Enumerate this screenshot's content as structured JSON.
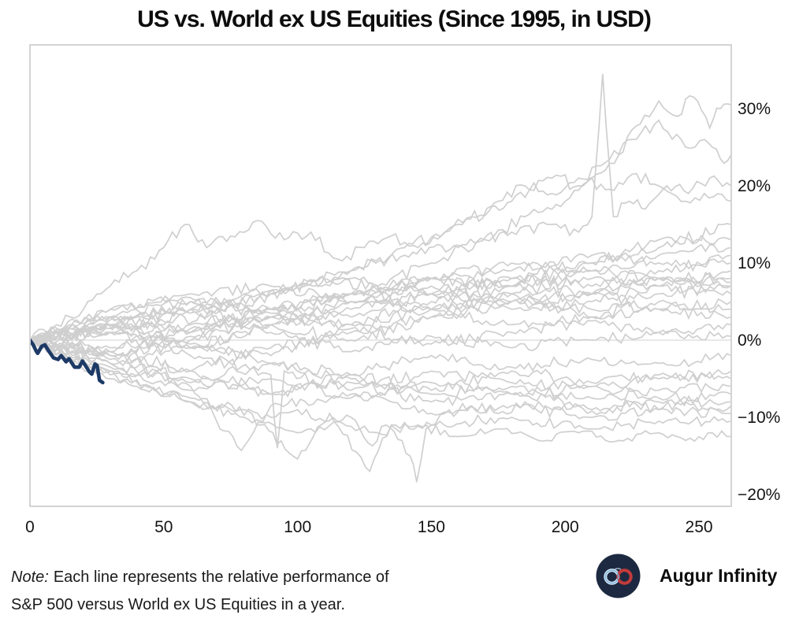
{
  "chart": {
    "title": "US vs. World ex US Equities (Since 1995, in USD)"
  },
  "note": {
    "prefix": "Note:",
    "line1": "Each line represents the relative performance of",
    "line2": "S&P 500 versus World ex US Equities in a year."
  },
  "logo": {
    "text": "Augur Infinity",
    "icon": "infinity-icon",
    "circle_color": "#1c2940",
    "loop_left_color": "#dcebf7",
    "loop_right_color": "#c23b3b"
  },
  "colors": {
    "background_line": "#cfcfcf",
    "highlight_line": "#1d3a66",
    "plot_border": "#c9c9c9",
    "zero_gridline": "#d9d9d9",
    "text": "#141414"
  },
  "chart_data": {
    "type": "line",
    "title": "US vs. World ex US Equities (Since 1995, in USD)",
    "xlabel": "",
    "ylabel": "",
    "grid": "horizontal zero line only",
    "legend": "none",
    "x_axis": {
      "range": [
        0,
        262
      ],
      "ticks": [
        {
          "value": 0,
          "label": "0"
        },
        {
          "value": 50,
          "label": "50"
        },
        {
          "value": 100,
          "label": "100"
        },
        {
          "value": 150,
          "label": "150"
        },
        {
          "value": 200,
          "label": "200"
        },
        {
          "value": 250,
          "label": "250"
        }
      ]
    },
    "y_axis": {
      "side": "right",
      "unit": "%",
      "range": [
        -21.5,
        38.3
      ],
      "zero_line": 0,
      "ticks": [
        {
          "value": 30,
          "label": "30%"
        },
        {
          "value": 20,
          "label": "20%"
        },
        {
          "value": 10,
          "label": "10%"
        },
        {
          "value": 0,
          "label": "0%"
        },
        {
          "value": -10,
          "label": "−10%"
        },
        {
          "value": -20,
          "label": "−20%"
        }
      ]
    },
    "highlight_series": {
      "name": "current-year-to-date",
      "color": "#1d3a66",
      "points": [
        [
          0,
          0
        ],
        [
          1.2,
          -0.6
        ],
        [
          2.3,
          -1.4
        ],
        [
          2.9,
          -1.7
        ],
        [
          4.4,
          -0.8
        ],
        [
          5.6,
          -0.6
        ],
        [
          7,
          -1.4
        ],
        [
          8.8,
          -2.3
        ],
        [
          10.5,
          -2.5
        ],
        [
          11.7,
          -2
        ],
        [
          13.5,
          -2.8
        ],
        [
          14.6,
          -2.4
        ],
        [
          16.7,
          -3.5
        ],
        [
          18.4,
          -3.5
        ],
        [
          19.6,
          -2.7
        ],
        [
          21.1,
          -3.5
        ],
        [
          22.2,
          -4.1
        ],
        [
          23.1,
          -4.4
        ],
        [
          24.3,
          -3.1
        ],
        [
          25.1,
          -3.3
        ],
        [
          26,
          -5.2
        ],
        [
          27.2,
          -5.5
        ]
      ]
    },
    "generic_x": [
      0,
      30,
      60,
      90,
      120,
      150,
      180,
      210,
      235,
      262
    ],
    "background_series": [
      {
        "id": "year-01",
        "seed": 101,
        "jitter": 1.2,
        "anchors": [
          [
            0,
            0
          ],
          [
            15,
            1.5
          ],
          [
            30,
            3
          ],
          [
            50,
            2
          ],
          [
            70,
            4
          ],
          [
            90,
            6
          ],
          [
            110,
            8
          ],
          [
            130,
            7
          ],
          [
            150,
            10
          ],
          [
            170,
            13
          ],
          [
            185,
            16
          ],
          [
            200,
            18
          ],
          [
            210,
            21
          ],
          [
            220,
            24
          ],
          [
            228,
            28
          ],
          [
            235,
            31
          ],
          [
            242,
            29
          ],
          [
            248,
            31.5
          ],
          [
            254,
            27.5
          ],
          [
            258,
            30
          ],
          [
            262,
            30.5
          ]
        ]
      },
      {
        "id": "year-02",
        "seed": 102,
        "jitter": 1.1,
        "anchors": [
          [
            0,
            0
          ],
          [
            20,
            1
          ],
          [
            40,
            3
          ],
          [
            60,
            5
          ],
          [
            80,
            4
          ],
          [
            100,
            7
          ],
          [
            120,
            9
          ],
          [
            140,
            12
          ],
          [
            160,
            15
          ],
          [
            180,
            18
          ],
          [
            195,
            21
          ],
          [
            205,
            20
          ],
          [
            215,
            23
          ],
          [
            225,
            26
          ],
          [
            235,
            28.5
          ],
          [
            245,
            25
          ],
          [
            252,
            26
          ],
          [
            258,
            23.5
          ],
          [
            262,
            24
          ]
        ]
      },
      {
        "id": "year-03",
        "seed": 103,
        "jitter": 1.0,
        "anchors": [
          [
            0,
            0
          ],
          [
            20,
            1.5
          ],
          [
            40,
            3
          ],
          [
            60,
            4
          ],
          [
            80,
            6
          ],
          [
            100,
            7
          ],
          [
            120,
            9
          ],
          [
            140,
            11
          ],
          [
            160,
            12
          ],
          [
            180,
            14
          ],
          [
            195,
            15
          ],
          [
            205,
            14
          ],
          [
            210,
            16
          ],
          [
            214,
            34.5
          ],
          [
            218,
            16
          ],
          [
            224,
            18
          ],
          [
            230,
            17
          ],
          [
            238,
            20
          ],
          [
            246,
            19
          ],
          [
            254,
            21
          ],
          [
            262,
            20
          ]
        ]
      },
      {
        "id": "year-04",
        "seed": 104,
        "jitter": 1.0,
        "anchors": [
          [
            0,
            0
          ],
          [
            10,
            2
          ],
          [
            20,
            4
          ],
          [
            30,
            7
          ],
          [
            40,
            9
          ],
          [
            50,
            12
          ],
          [
            58,
            15
          ],
          [
            66,
            12
          ],
          [
            75,
            13.5
          ],
          [
            85,
            15.5
          ],
          [
            95,
            13
          ],
          [
            105,
            14
          ],
          [
            115,
            10.5
          ],
          [
            125,
            12
          ],
          [
            135,
            13.5
          ],
          [
            145,
            12
          ],
          [
            155,
            14
          ],
          [
            165,
            16
          ],
          [
            175,
            18
          ],
          [
            185,
            20
          ],
          [
            195,
            19
          ],
          [
            205,
            21
          ],
          [
            215,
            19.5
          ],
          [
            225,
            21.5
          ],
          [
            235,
            20
          ],
          [
            245,
            18
          ],
          [
            252,
            19
          ],
          [
            262,
            18
          ]
        ]
      },
      {
        "id": "year-05",
        "seed": 105,
        "jitter": 0.9,
        "anchors": [
          [
            0,
            0
          ],
          [
            15,
            -2.5
          ],
          [
            30,
            -4.5
          ],
          [
            45,
            -6
          ],
          [
            60,
            -8
          ],
          [
            75,
            -9
          ],
          [
            90,
            -10
          ],
          [
            100,
            -9
          ],
          [
            110,
            -10.5
          ],
          [
            120,
            -10
          ],
          [
            128,
            -13.7
          ],
          [
            133,
            -11
          ],
          [
            139,
            -13
          ],
          [
            142,
            -15
          ],
          [
            144.5,
            -18.4
          ],
          [
            148,
            -11.5
          ],
          [
            155,
            -9.5
          ],
          [
            165,
            -8.5
          ],
          [
            175,
            -9.5
          ],
          [
            185,
            -8
          ],
          [
            195,
            -9
          ],
          [
            205,
            -8.5
          ],
          [
            215,
            -9.5
          ],
          [
            225,
            -8
          ],
          [
            235,
            -9
          ],
          [
            245,
            -8
          ],
          [
            253,
            -9
          ],
          [
            262,
            -8.5
          ]
        ]
      },
      {
        "id": "year-06",
        "seed": 106,
        "jitter": 0.8,
        "anchors": [
          [
            0,
            0
          ],
          [
            20,
            -3
          ],
          [
            40,
            -6
          ],
          [
            60,
            -8
          ],
          [
            80,
            -10
          ],
          [
            100,
            -12
          ],
          [
            115,
            -10.5
          ],
          [
            130,
            -12
          ],
          [
            145,
            -11
          ],
          [
            160,
            -12.5
          ],
          [
            175,
            -11.5
          ],
          [
            190,
            -13
          ],
          [
            205,
            -12
          ],
          [
            220,
            -13
          ],
          [
            235,
            -12
          ],
          [
            245,
            -13
          ],
          [
            255,
            -12
          ],
          [
            262,
            -12.5
          ]
        ]
      },
      {
        "id": "year-07",
        "seed": 107,
        "jitter": 1.1,
        "ys": [
          0,
          2,
          1,
          4,
          6,
          8,
          7,
          10,
          12,
          15
        ]
      },
      {
        "id": "year-08",
        "seed": 108,
        "jitter": 1.0,
        "ys": [
          0,
          -1.5,
          2,
          4,
          3,
          6,
          8,
          10,
          13,
          13
        ]
      },
      {
        "id": "year-09",
        "seed": 109,
        "jitter": 1.0,
        "ys": [
          0,
          3,
          5,
          3.5,
          6,
          8,
          10,
          9,
          11,
          12
        ]
      },
      {
        "id": "year-10",
        "seed": 110,
        "jitter": 1.1,
        "ys": [
          0,
          1,
          -1,
          2,
          4,
          6,
          8,
          7,
          9,
          11
        ]
      },
      {
        "id": "year-11",
        "seed": 111,
        "jitter": 0.9,
        "ys": [
          0,
          4,
          6,
          7,
          5,
          8,
          9,
          11,
          10,
          10
        ]
      },
      {
        "id": "year-12",
        "seed": 112,
        "jitter": 1.0,
        "ys": [
          0,
          -2,
          0,
          3,
          5,
          4,
          6,
          8,
          7,
          9
        ]
      },
      {
        "id": "year-13",
        "seed": 113,
        "jitter": 1.0,
        "ys": [
          0,
          2,
          4,
          2,
          5,
          7,
          5,
          6,
          8,
          8
        ]
      },
      {
        "id": "year-14",
        "seed": 114,
        "jitter": 0.9,
        "ys": [
          0,
          -1,
          1.5,
          4,
          6,
          8,
          7,
          9,
          8,
          7.5
        ]
      },
      {
        "id": "year-15",
        "seed": 115,
        "jitter": 1.0,
        "ys": [
          0,
          3,
          1,
          3,
          2,
          5,
          7,
          6,
          8,
          7
        ]
      },
      {
        "id": "year-16",
        "seed": 116,
        "jitter": 1.1,
        "ys": [
          0,
          -2,
          -4,
          -1,
          1,
          3,
          5,
          4,
          6,
          7
        ]
      },
      {
        "id": "year-17",
        "seed": 117,
        "jitter": 0.9,
        "ys": [
          0,
          1,
          4,
          6,
          8,
          6,
          4,
          5,
          7,
          6
        ]
      },
      {
        "id": "year-18",
        "seed": 118,
        "jitter": 1.0,
        "ys": [
          0,
          -3,
          -1,
          2,
          0,
          3,
          5,
          6,
          4,
          5
        ]
      },
      {
        "id": "year-19",
        "seed": 119,
        "jitter": 1.0,
        "ys": [
          0,
          2,
          -1,
          -2,
          2,
          4,
          6,
          3,
          5,
          4
        ]
      },
      {
        "id": "year-20",
        "seed": 120,
        "jitter": 0.9,
        "ys": [
          0,
          4,
          5.5,
          4,
          6,
          4,
          2,
          3,
          4,
          3
        ]
      },
      {
        "id": "year-21",
        "seed": 121,
        "jitter": 1.0,
        "ys": [
          0,
          -2,
          0.5,
          3,
          1.5,
          -0.5,
          1,
          2.5,
          1,
          2
        ]
      },
      {
        "id": "year-22",
        "seed": 122,
        "jitter": 1.0,
        "ys": [
          0,
          1.5,
          3.5,
          1,
          -1.5,
          0.5,
          -1,
          0,
          1,
          0.5
        ]
      },
      {
        "id": "year-23",
        "seed": 123,
        "jitter": 1.0,
        "ys": [
          0,
          -3.5,
          -5.5,
          -3,
          -4.5,
          -2,
          -3.5,
          -2.5,
          -3,
          -2
        ]
      },
      {
        "id": "year-24",
        "seed": 124,
        "jitter": 1.0,
        "anchors": [
          [
            0,
            0
          ],
          [
            30,
            1
          ],
          [
            60,
            -2
          ],
          [
            90,
            -4.5
          ],
          [
            92.5,
            -14
          ],
          [
            95,
            -4
          ],
          [
            120,
            -6.5
          ],
          [
            150,
            -4
          ],
          [
            180,
            -5.5
          ],
          [
            210,
            -6
          ],
          [
            235,
            -5
          ],
          [
            262,
            -4
          ]
        ]
      },
      {
        "id": "year-25",
        "seed": 125,
        "jitter": 1.0,
        "ys": [
          0,
          -2.5,
          -5,
          -7,
          -4.5,
          -6.5,
          -4,
          -5.5,
          -4.5,
          -5
        ]
      },
      {
        "id": "year-26",
        "seed": 126,
        "jitter": 0.9,
        "ys": [
          0,
          2,
          -0.5,
          -3,
          -5,
          -7,
          -6,
          -7.5,
          -6.5,
          -6
        ]
      },
      {
        "id": "year-27",
        "seed": 127,
        "jitter": 0.9,
        "ys": [
          0,
          -4,
          -6.5,
          -5,
          -7.5,
          -5.5,
          -7,
          -6,
          -7.5,
          -7
        ]
      },
      {
        "id": "year-28",
        "seed": 128,
        "jitter": 1.0,
        "ys": [
          0,
          -1.5,
          -4,
          -7,
          -5.5,
          -8,
          -7,
          -9,
          -8,
          -8
        ]
      },
      {
        "id": "year-29",
        "seed": 129,
        "jitter": 0.9,
        "anchors": [
          [
            0,
            0
          ],
          [
            30,
            -3
          ],
          [
            60,
            -6
          ],
          [
            79,
            -14.3
          ],
          [
            90,
            -8.5
          ],
          [
            120,
            -7
          ],
          [
            150,
            -9.5
          ],
          [
            180,
            -8.5
          ],
          [
            210,
            -10
          ],
          [
            235,
            -9
          ],
          [
            262,
            -9.5
          ]
        ]
      },
      {
        "id": "year-30",
        "seed": 130,
        "jitter": 0.9,
        "anchors": [
          [
            0,
            0
          ],
          [
            30,
            -5
          ],
          [
            60,
            -7.5
          ],
          [
            80,
            -9
          ],
          [
            100,
            -15.4
          ],
          [
            112,
            -9.5
          ],
          [
            127,
            -17
          ],
          [
            135,
            -11
          ],
          [
            150,
            -11
          ],
          [
            180,
            -10
          ],
          [
            210,
            -11.5
          ],
          [
            235,
            -10.5
          ],
          [
            262,
            -10.5
          ]
        ]
      }
    ]
  }
}
